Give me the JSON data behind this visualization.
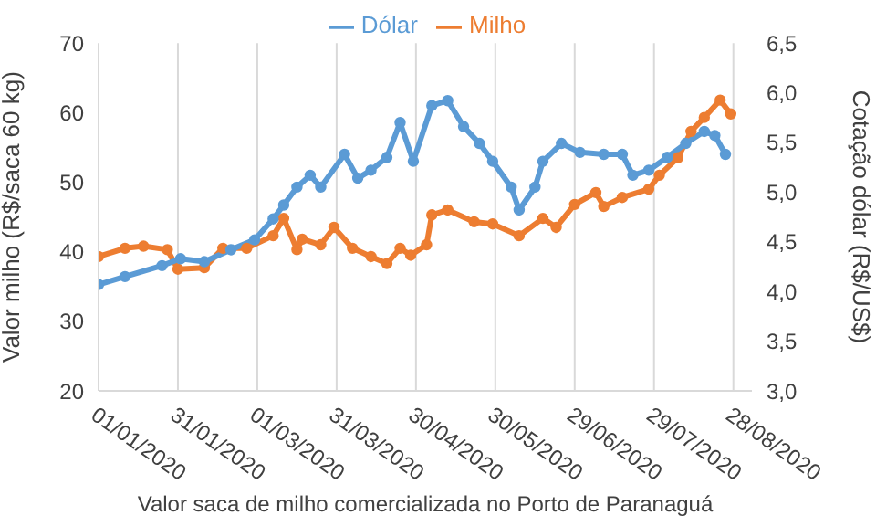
{
  "chart_data": {
    "type": "line",
    "xlabel": "Valor saca de milho comercializada no Porto de Paranaguá",
    "ylabel": "Valor milho (R$/saca 60 kg)",
    "y2label": "Cotação dólar (R$/US$)",
    "xlim": [
      "2020-01-01",
      "2020-09-04"
    ],
    "xticks": [
      {
        "value": "2020-01-01",
        "label": "01/01/2020"
      },
      {
        "value": "2020-01-31",
        "label": "31/01/2020"
      },
      {
        "value": "2020-03-01",
        "label": "01/03/2020"
      },
      {
        "value": "2020-03-31",
        "label": "31/03/2020"
      },
      {
        "value": "2020-04-30",
        "label": "30/04/2020"
      },
      {
        "value": "2020-05-30",
        "label": "30/05/2020"
      },
      {
        "value": "2020-06-29",
        "label": "29/06/2020"
      },
      {
        "value": "2020-07-29",
        "label": "29/07/2020"
      },
      {
        "value": "2020-08-28",
        "label": "28/08/2020"
      }
    ],
    "ylim": [
      20,
      70
    ],
    "yticks": [
      20,
      30,
      40,
      50,
      60,
      70
    ],
    "y2lim": [
      3,
      6.5
    ],
    "y2ticks": [
      {
        "value": 3,
        "label": "3,0"
      },
      {
        "value": 3.5,
        "label": "3,5"
      },
      {
        "value": 4,
        "label": "4,0"
      },
      {
        "value": 4.5,
        "label": "4,5"
      },
      {
        "value": 5,
        "label": "5,0"
      },
      {
        "value": 5.5,
        "label": "5,5"
      },
      {
        "value": 6,
        "label": "6,0"
      },
      {
        "value": 6.5,
        "label": "6,5"
      }
    ],
    "grid": "x",
    "legend": "top",
    "marker": "circle",
    "line_style": "solid",
    "series": [
      {
        "name": "Milho",
        "color": "#ed7d31",
        "x": [
          "2020-01-01",
          "2020-01-11",
          "2020-01-18",
          "2020-01-27",
          "2020-01-31",
          "2020-02-10",
          "2020-02-17",
          "2020-02-26",
          "2020-03-07",
          "2020-03-11",
          "2020-03-16",
          "2020-03-18",
          "2020-03-25",
          "2020-03-30",
          "2020-04-06",
          "2020-04-13",
          "2020-04-19",
          "2020-04-24",
          "2020-04-28",
          "2020-05-04",
          "2020-05-06",
          "2020-05-12",
          "2020-05-22",
          "2020-05-29",
          "2020-06-08",
          "2020-06-17",
          "2020-06-22",
          "2020-06-29",
          "2020-07-07",
          "2020-07-10",
          "2020-07-17",
          "2020-07-27",
          "2020-07-31",
          "2020-08-07",
          "2020-08-12",
          "2020-08-17",
          "2020-08-23",
          "2020-08-27"
        ],
        "values": [
          39.3,
          40.5,
          40.8,
          40.3,
          37.5,
          37.7,
          40.5,
          40.5,
          42.3,
          44.8,
          40.3,
          41.8,
          41,
          43.5,
          40.5,
          39.3,
          38.3,
          40.5,
          39.5,
          41,
          45.3,
          46,
          44.3,
          44,
          42.3,
          44.8,
          43.5,
          46.8,
          48.5,
          46.5,
          47.8,
          49,
          51,
          53.5,
          57.3,
          59.3,
          61.8,
          59.8
        ]
      },
      {
        "name": "Dólar",
        "color": "#5b9bd5",
        "axis": "y2",
        "x": [
          "2020-01-01",
          "2020-01-11",
          "2020-01-25",
          "2020-02-01",
          "2020-02-10",
          "2020-02-20",
          "2020-02-29",
          "2020-03-07",
          "2020-03-11",
          "2020-03-16",
          "2020-03-21",
          "2020-03-25",
          "2020-04-03",
          "2020-04-08",
          "2020-04-13",
          "2020-04-19",
          "2020-04-24",
          "2020-04-29",
          "2020-05-06",
          "2020-05-12",
          "2020-05-18",
          "2020-05-24",
          "2020-05-29",
          "2020-06-05",
          "2020-06-08",
          "2020-06-14",
          "2020-06-17",
          "2020-06-24",
          "2020-07-01",
          "2020-07-10",
          "2020-07-17",
          "2020-07-21",
          "2020-07-27",
          "2020-08-03",
          "2020-08-10",
          "2020-08-17",
          "2020-08-21",
          "2020-08-25"
        ],
        "values": [
          4.07,
          4.15,
          4.26,
          4.33,
          4.3,
          4.42,
          4.52,
          4.73,
          4.87,
          5.05,
          5.17,
          5.05,
          5.38,
          5.14,
          5.22,
          5.35,
          5.7,
          5.31,
          5.87,
          5.92,
          5.66,
          5.49,
          5.31,
          5.05,
          4.82,
          5.05,
          5.31,
          5.49,
          5.4,
          5.38,
          5.38,
          5.17,
          5.22,
          5.35,
          5.49,
          5.61,
          5.57,
          5.38
        ]
      }
    ]
  }
}
